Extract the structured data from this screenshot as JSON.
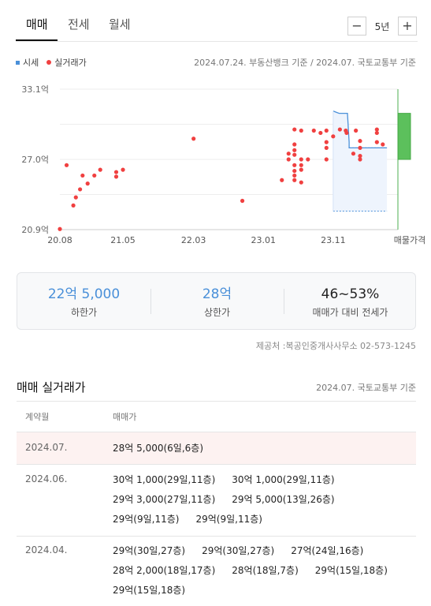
{
  "tabs": [
    {
      "label": "매매",
      "active": true
    },
    {
      "label": "전세",
      "active": false
    },
    {
      "label": "월세",
      "active": false
    }
  ],
  "range": {
    "label": "5년",
    "minus": "−",
    "plus": "+"
  },
  "legend": {
    "market": "시세",
    "actual": "실거래가",
    "colors": {
      "market": "#4a90d9",
      "actual": "#f04040",
      "ask_range": "#5cc05c"
    }
  },
  "source_line": "2024.07.24. 부동산뱅크 기준 / 2024.07. 국토교통부 기준",
  "chart_data": {
    "type": "scatter",
    "y_tick_labels": [
      "33.1억",
      "27.0억",
      "20.9억"
    ],
    "y_ticks": [
      33.1,
      27.0,
      20.9
    ],
    "ylim": [
      20.9,
      33.1
    ],
    "x_tick_labels": [
      "20.08",
      "21.05",
      "22.03",
      "23.01",
      "23.11"
    ],
    "x_ticks": [
      2020.58,
      2021.33,
      2022.17,
      2023.0,
      2023.83
    ],
    "xlim": [
      2020.58,
      2024.6
    ],
    "listing_label": "매물가격",
    "series": [
      {
        "name": "실거래가",
        "color": "#f04040",
        "points": [
          [
            2020.58,
            20.95
          ],
          [
            2020.66,
            26.5
          ],
          [
            2020.74,
            23.0
          ],
          [
            2020.77,
            23.7
          ],
          [
            2020.82,
            24.4
          ],
          [
            2020.85,
            25.6
          ],
          [
            2020.91,
            24.9
          ],
          [
            2020.99,
            25.6
          ],
          [
            2021.06,
            26.1
          ],
          [
            2021.25,
            25.5
          ],
          [
            2021.25,
            25.9
          ],
          [
            2021.33,
            26.1
          ],
          [
            2022.17,
            28.8
          ],
          [
            2022.75,
            23.4
          ],
          [
            2023.22,
            25.2
          ],
          [
            2023.3,
            27.5
          ],
          [
            2023.3,
            27.0
          ],
          [
            2023.37,
            29.6
          ],
          [
            2023.37,
            28.3
          ],
          [
            2023.37,
            27.8
          ],
          [
            2023.37,
            27.4
          ],
          [
            2023.37,
            26.5
          ],
          [
            2023.37,
            26.0
          ],
          [
            2023.37,
            25.6
          ],
          [
            2023.37,
            25.2
          ],
          [
            2023.45,
            29.5
          ],
          [
            2023.45,
            27.0
          ],
          [
            2023.45,
            26.5
          ],
          [
            2023.45,
            26.1
          ],
          [
            2023.45,
            25.0
          ],
          [
            2023.53,
            27.0
          ],
          [
            2023.6,
            29.5
          ],
          [
            2023.68,
            29.3
          ],
          [
            2023.75,
            29.5
          ],
          [
            2023.75,
            27.0
          ],
          [
            2023.75,
            28.0
          ],
          [
            2023.75,
            28.5
          ],
          [
            2023.83,
            29.0
          ],
          [
            2023.91,
            29.6
          ],
          [
            2023.98,
            29.5
          ],
          [
            2023.99,
            29.3
          ],
          [
            2024.07,
            27.5
          ],
          [
            2024.1,
            29.5
          ],
          [
            2024.15,
            27.0
          ],
          [
            2024.15,
            28.6
          ],
          [
            2024.15,
            28.0
          ],
          [
            2024.15,
            27.3
          ],
          [
            2024.35,
            29.6
          ],
          [
            2024.35,
            29.3
          ],
          [
            2024.35,
            28.5
          ],
          [
            2024.42,
            28.3
          ]
        ]
      },
      {
        "name": "시세",
        "color": "#4a90d9",
        "upper": [
          [
            2023.83,
            31.2
          ],
          [
            2023.9,
            31.0
          ],
          [
            2024.0,
            31.0
          ],
          [
            2024.02,
            28.5
          ],
          [
            2024.02,
            28.0
          ],
          [
            2024.47,
            28.0
          ]
        ],
        "lower": [
          [
            2023.83,
            22.5
          ],
          [
            2024.47,
            22.5
          ]
        ]
      },
      {
        "name": "매물가격",
        "color": "#5cc05c",
        "low": 27.0,
        "high": 31.0
      }
    ]
  },
  "stats": [
    {
      "value": "22억 5,000",
      "label": "하한가",
      "color": "#4a90d9"
    },
    {
      "value": "28억",
      "label": "상한가",
      "color": "#4a90d9"
    },
    {
      "value": "46~53%",
      "label": "매매가 대비 전세가",
      "color": "#222222"
    }
  ],
  "provider": "제공처 :복공인중개사사무소 02-573-1245",
  "section": {
    "title": "매매 실거래가",
    "source": "2024.07. 국토교통부 기준"
  },
  "table": {
    "headers": [
      "계약월",
      "매매가"
    ],
    "rows": [
      {
        "month": "2024.07.",
        "highlight": true,
        "deals": [
          "28억 5,000(6일,6층)"
        ]
      },
      {
        "month": "2024.06.",
        "highlight": false,
        "deals": [
          "30억 1,000(29일,11층)",
          "30억 1,000(29일,11층)",
          "29억 3,000(27일,11층)",
          "29억 5,000(13일,26층)",
          "29억(9일,11층)",
          "29억(9일,11층)"
        ]
      },
      {
        "month": "2024.04.",
        "highlight": false,
        "deals": [
          "29억(30일,27층)",
          "29억(30일,27층)",
          "27억(24일,16층)",
          "28억 2,000(18일,17층)",
          "28억(18일,7층)",
          "29억(15일,18층)",
          "29억(15일,18층)"
        ]
      }
    ]
  }
}
